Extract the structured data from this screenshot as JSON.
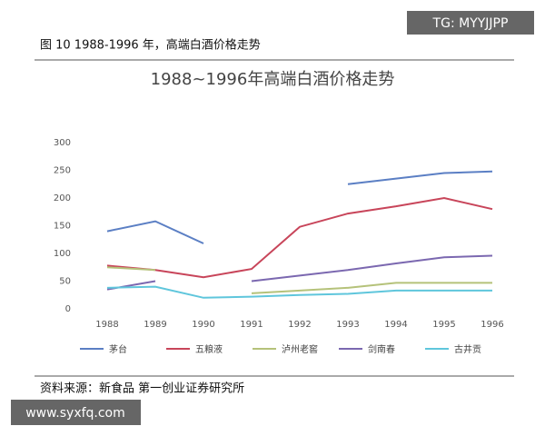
{
  "watermark_top": "TG: MYYJJPP",
  "caption": "图 10   1988-1996 年，高端白酒价格走势",
  "source": "资料来源：新食品    第一创业证券研究所",
  "watermark_bottom": "www.syxfq.com",
  "chart_data": {
    "type": "line",
    "title": "1988~1996年高端白酒价格走势",
    "categories": [
      "1988",
      "1989",
      "1990",
      "1991",
      "1992",
      "1993",
      "1994",
      "1995",
      "1996"
    ],
    "series": [
      {
        "name": "茅台",
        "color": "#5b7fc4",
        "values": [
          140,
          158,
          118,
          null,
          null,
          225,
          235,
          245,
          248
        ]
      },
      {
        "name": "五粮液",
        "color": "#c8455a",
        "values": [
          78,
          70,
          57,
          72,
          148,
          172,
          185,
          200,
          180
        ]
      },
      {
        "name": "泸州老窖",
        "color": "#b5c27a",
        "values": [
          75,
          70,
          null,
          28,
          33,
          38,
          47,
          47,
          47
        ]
      },
      {
        "name": "剑南春",
        "color": "#7b68b0",
        "values": [
          35,
          50,
          null,
          50,
          60,
          70,
          82,
          93,
          96
        ]
      },
      {
        "name": "古井贡",
        "color": "#5fc6dc",
        "values": [
          38,
          40,
          20,
          22,
          25,
          27,
          33,
          33,
          33
        ]
      }
    ],
    "ylim": [
      0,
      300
    ],
    "yticks": [
      0,
      50,
      100,
      150,
      200,
      250,
      300
    ],
    "grid": false
  }
}
